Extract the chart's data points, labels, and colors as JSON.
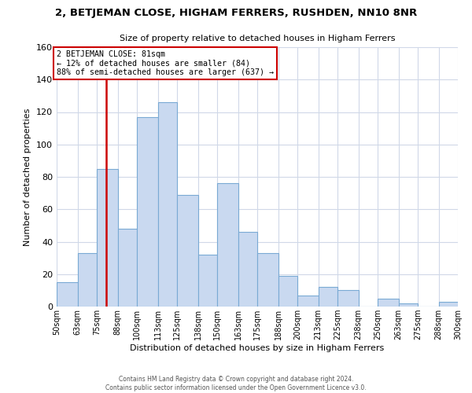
{
  "title": "2, BETJEMAN CLOSE, HIGHAM FERRERS, RUSHDEN, NN10 8NR",
  "subtitle": "Size of property relative to detached houses in Higham Ferrers",
  "xlabel": "Distribution of detached houses by size in Higham Ferrers",
  "ylabel": "Number of detached properties",
  "bin_edges": [
    50,
    63,
    75,
    88,
    100,
    113,
    125,
    138,
    150,
    163,
    175,
    188,
    200,
    213,
    225,
    238,
    250,
    263,
    275,
    288,
    300
  ],
  "bar_heights": [
    15,
    33,
    85,
    48,
    117,
    126,
    69,
    32,
    76,
    46,
    33,
    19,
    7,
    12,
    10,
    0,
    5,
    2,
    0,
    3
  ],
  "bar_color": "#c9d9f0",
  "bar_edge_color": "#7aaad4",
  "vline_color": "#cc0000",
  "vline_x": 81,
  "ylim": [
    0,
    160
  ],
  "annotation_title": "2 BETJEMAN CLOSE: 81sqm",
  "annotation_line1": "← 12% of detached houses are smaller (84)",
  "annotation_line2": "88% of semi-detached houses are larger (637) →",
  "annotation_box_color": "#ffffff",
  "annotation_box_edge": "#cc0000",
  "footer1": "Contains HM Land Registry data © Crown copyright and database right 2024.",
  "footer2": "Contains public sector information licensed under the Open Government Licence v3.0.",
  "tick_labels": [
    "50sqm",
    "63sqm",
    "75sqm",
    "88sqm",
    "100sqm",
    "113sqm",
    "125sqm",
    "138sqm",
    "150sqm",
    "163sqm",
    "175sqm",
    "188sqm",
    "200sqm",
    "213sqm",
    "225sqm",
    "238sqm",
    "250sqm",
    "263sqm",
    "275sqm",
    "288sqm",
    "300sqm"
  ],
  "background_color": "#ffffff",
  "grid_color": "#d0d8e8"
}
